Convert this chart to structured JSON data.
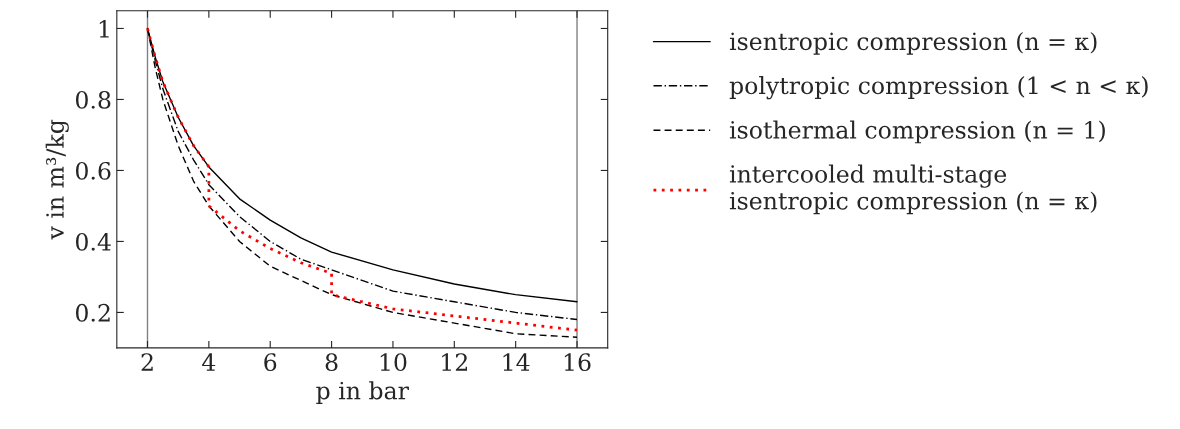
{
  "chart_data": {
    "type": "line",
    "xlabel": "p in bar",
    "ylabel": "v in m³/kg",
    "xlim": [
      1,
      17
    ],
    "ylim": [
      0.1,
      1.05
    ],
    "xticks": [
      2,
      4,
      6,
      8,
      10,
      12,
      14,
      16
    ],
    "yticks": [
      0.2,
      0.4,
      0.6,
      0.8,
      1
    ],
    "grid": false,
    "legend": "right",
    "marker": "none",
    "series": [
      {
        "name": "isentropic compression (n = κ)",
        "color": "#000000",
        "line_style": "solid",
        "x": [
          2,
          2.25,
          2.5,
          3,
          3.5,
          4,
          5,
          6,
          7,
          8,
          10,
          12,
          14,
          16
        ],
        "values": [
          1,
          0.92,
          0.85,
          0.75,
          0.67,
          0.61,
          0.52,
          0.46,
          0.41,
          0.37,
          0.32,
          0.28,
          0.25,
          0.23
        ]
      },
      {
        "name": "polytropic compression (1 < n < κ)",
        "color": "#000000",
        "line_style": "dashdot",
        "x": [
          2,
          2.25,
          2.5,
          3,
          3.5,
          4,
          5,
          6,
          7,
          8,
          10,
          12,
          14,
          16
        ],
        "values": [
          1,
          0.91,
          0.83,
          0.71,
          0.63,
          0.56,
          0.47,
          0.4,
          0.35,
          0.32,
          0.26,
          0.23,
          0.2,
          0.18
        ]
      },
      {
        "name": "isothermal compression (n = 1)",
        "color": "#000000",
        "line_style": "dashed",
        "x": [
          2,
          2.25,
          2.5,
          3,
          3.5,
          4,
          5,
          6,
          7,
          8,
          10,
          12,
          14,
          16
        ],
        "values": [
          1,
          0.89,
          0.8,
          0.67,
          0.57,
          0.5,
          0.4,
          0.33,
          0.29,
          0.25,
          0.2,
          0.17,
          0.14,
          0.13
        ]
      },
      {
        "name": "intercooled multi-stage\nisentropic compression (n = κ)",
        "color": "#ff0000",
        "line_style": "dotted",
        "x": [
          2,
          2.25,
          2.5,
          3,
          3.5,
          4,
          4,
          5,
          6,
          7,
          8,
          8,
          10,
          12,
          14,
          16
        ],
        "values": [
          1,
          0.92,
          0.85,
          0.75,
          0.67,
          0.61,
          0.5,
          0.43,
          0.38,
          0.34,
          0.31,
          0.25,
          0.21,
          0.19,
          0.17,
          0.15
        ]
      }
    ],
    "ref_lines": [
      {
        "axis": "x",
        "value": 2,
        "color": "#808080"
      },
      {
        "axis": "x",
        "value": 16,
        "color": "#808080"
      }
    ]
  }
}
